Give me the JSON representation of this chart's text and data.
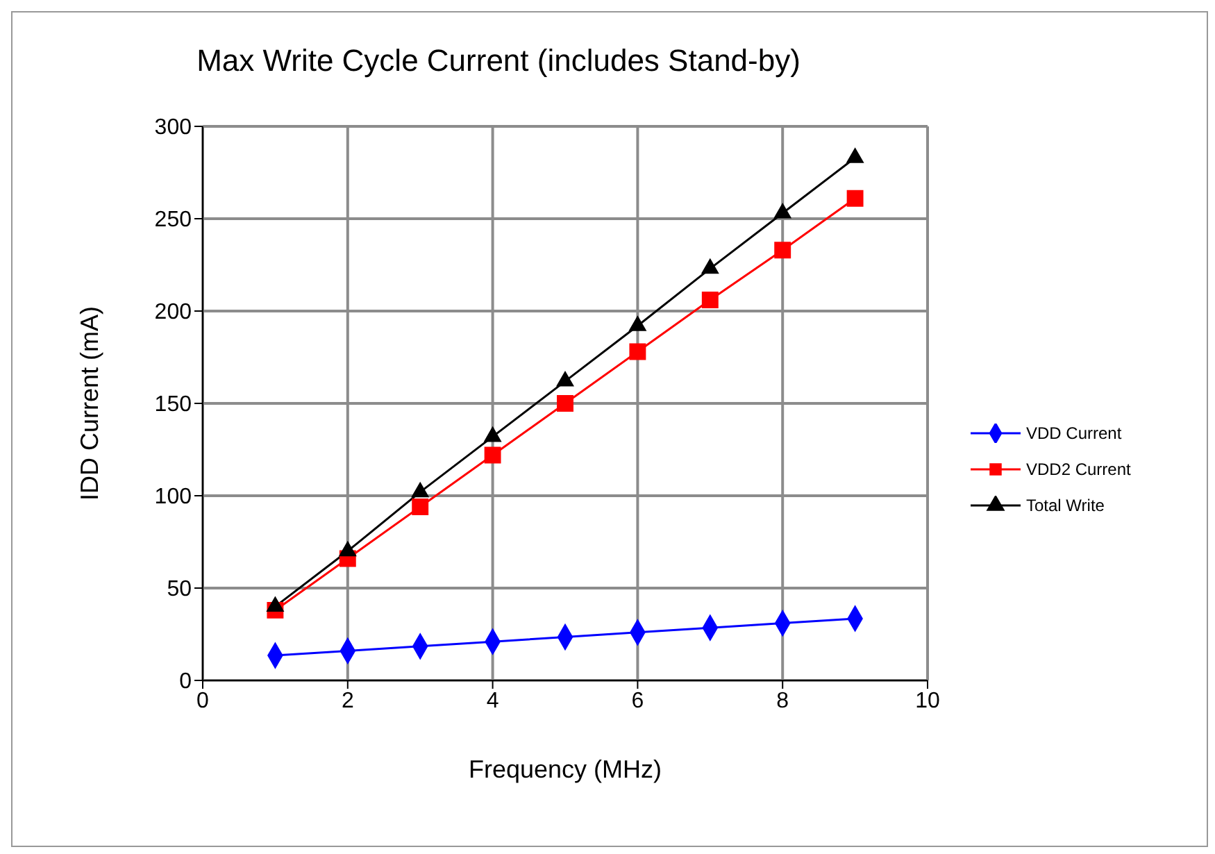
{
  "chart_data": {
    "type": "line",
    "title": "Max Write Cycle Current (includes Stand-by)",
    "xlabel": "Frequency (MHz)",
    "ylabel": "IDD Current (mA)",
    "x": [
      1,
      2,
      3,
      4,
      5,
      6,
      7,
      8,
      9
    ],
    "series": [
      {
        "name": "VDD Current",
        "color": "#0000ff",
        "marker": "diamond",
        "values": [
          13.5,
          16,
          18.5,
          21,
          23.5,
          26,
          28.5,
          31,
          33.5
        ]
      },
      {
        "name": "VDD2 Current",
        "color": "#ff0000",
        "marker": "square",
        "values": [
          38,
          66,
          94,
          122,
          150,
          178,
          206,
          233,
          261
        ]
      },
      {
        "name": "Total Write",
        "color": "#000000",
        "marker": "triangle",
        "values": [
          40,
          70,
          102,
          132,
          162,
          192,
          223,
          253,
          283
        ]
      }
    ],
    "xlim": [
      0,
      10
    ],
    "xticks": [
      0,
      2,
      4,
      6,
      8,
      10
    ],
    "ylim": [
      0,
      300
    ],
    "yticks": [
      0,
      50,
      100,
      150,
      200,
      250,
      300
    ],
    "grid": true,
    "legend": "right",
    "line_style": "solid"
  }
}
